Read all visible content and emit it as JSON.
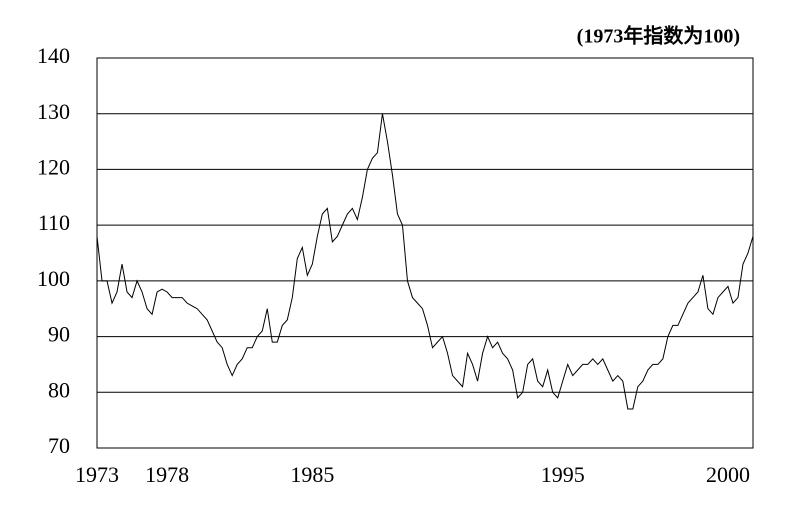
{
  "chart_data": {
    "type": "line",
    "annotation": "(1973年指数为100)",
    "categories": [
      "1973",
      null,
      null,
      null,
      null,
      null,
      null,
      null,
      null,
      null,
      null,
      null,
      null,
      null,
      "1978",
      null,
      null,
      null,
      null,
      null,
      null,
      null,
      null,
      null,
      null,
      null,
      null,
      null,
      null,
      null,
      null,
      null,
      null,
      null,
      null,
      null,
      null,
      null,
      null,
      null,
      null,
      null,
      null,
      "1985",
      null,
      null,
      null,
      null,
      null,
      null,
      null,
      null,
      null,
      null,
      null,
      null,
      null,
      null,
      null,
      null,
      null,
      null,
      null,
      null,
      null,
      null,
      null,
      null,
      null,
      null,
      null,
      null,
      null,
      null,
      null,
      null,
      null,
      null,
      null,
      null,
      null,
      null,
      null,
      null,
      null,
      null,
      null,
      null,
      null,
      null,
      null,
      null,
      null,
      "1995",
      null,
      null,
      null,
      null,
      null,
      null,
      null,
      null,
      null,
      null,
      null,
      null,
      null,
      null,
      null,
      null,
      null,
      null,
      null,
      null,
      null,
      null,
      null,
      null,
      null,
      null,
      null,
      null,
      null,
      null,
      null,
      null,
      "2000",
      null,
      null,
      null,
      null,
      null
    ],
    "series": [
      {
        "color": "#000000",
        "values": [
          108,
          100,
          100,
          96,
          98,
          103,
          98,
          97,
          100,
          98,
          95,
          94,
          98,
          98.5,
          98,
          97,
          97,
          97,
          96,
          95.5,
          95,
          94,
          93,
          91,
          89,
          88,
          85,
          83,
          85,
          86,
          88,
          88,
          90,
          91,
          95,
          89,
          89,
          92,
          93,
          97,
          104,
          106,
          101,
          103,
          108,
          112,
          113,
          107,
          108,
          110,
          112,
          113,
          111,
          115,
          120,
          122,
          123,
          130,
          125,
          119,
          112,
          110,
          100,
          97,
          96,
          95,
          92,
          88,
          89,
          90,
          87,
          83,
          82,
          81,
          87,
          85,
          82,
          87,
          90,
          88,
          89,
          87,
          86,
          84,
          79,
          80,
          85,
          86,
          82,
          81,
          84,
          80,
          79,
          82,
          85,
          83,
          84,
          85,
          85,
          86,
          85,
          86,
          84,
          82,
          83,
          82,
          77,
          77,
          81,
          82,
          84,
          85,
          85,
          86,
          90,
          92,
          92,
          94,
          96,
          97,
          98,
          101,
          95,
          94,
          97,
          98,
          99,
          96,
          97,
          103,
          105,
          108
        ]
      }
    ],
    "ylim": [
      70,
      140
    ],
    "yticks": [
      70,
      80,
      90,
      100,
      110,
      120,
      130,
      140
    ],
    "grid": true
  }
}
